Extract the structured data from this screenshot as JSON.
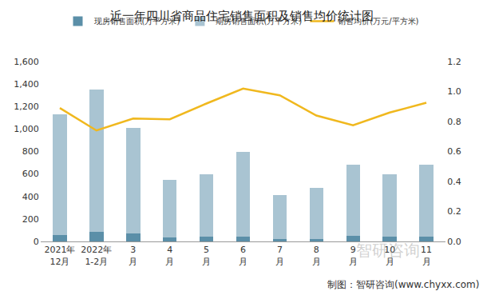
{
  "chart_data": {
    "type": "bar",
    "title": "近一年四川省商品住宅销售面积及销售均价统计图",
    "stacked": true,
    "grid": false,
    "legend": "top",
    "categories": [
      "2021年\n12月",
      "2022年\n1-2月",
      "3\n月",
      "4\n月",
      "5\n月",
      "6\n月",
      "7\n月",
      "8\n月",
      "9\n月",
      "10\n月",
      "11\n月"
    ],
    "series": [
      {
        "name": "现房销售面积(万平方米)",
        "type": "bar",
        "color": "#5b8fa8",
        "values": [
          55,
          85,
          70,
          35,
          45,
          40,
          20,
          20,
          50,
          40,
          40
        ]
      },
      {
        "name": "期房销售面积(万平方米)",
        "type": "bar",
        "color": "#a9c4d2",
        "values": [
          1075,
          1265,
          940,
          515,
          550,
          760,
          390,
          455,
          630,
          560,
          645
        ]
      },
      {
        "name": "销售均价(万元/平方米)",
        "type": "line",
        "axis": "y2",
        "color": "#f0b81e",
        "values": [
          0.89,
          0.74,
          0.82,
          0.815,
          0.92,
          1.02,
          0.975,
          0.84,
          0.775,
          0.86,
          0.925
        ]
      }
    ],
    "ylim": [
      0,
      1600
    ],
    "yticks": [
      0,
      200,
      400,
      600,
      800,
      {
        "value": 1000,
        "label": "1,000"
      },
      {
        "value": 1200,
        "label": "1,200"
      },
      {
        "value": 1400,
        "label": "1,400"
      },
      {
        "value": 1600,
        "label": "1,600"
      }
    ],
    "y2lim": [
      0,
      1.2
    ],
    "y2ticks": [
      {
        "value": 0,
        "label": "0.0"
      },
      0.2,
      0.4,
      0.6,
      0.8,
      {
        "value": 1,
        "label": "1.0"
      },
      1.2
    ],
    "source": "制图：智研咨询(www.chyxx.com)",
    "watermark": "智研咨询"
  }
}
